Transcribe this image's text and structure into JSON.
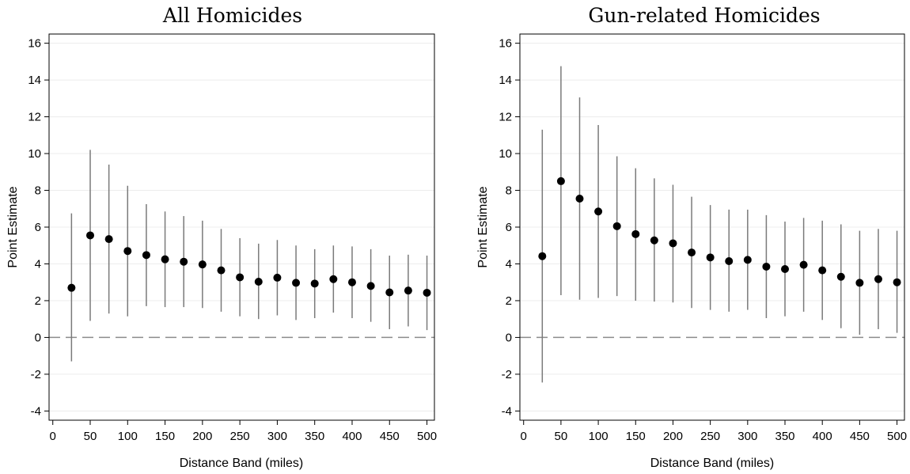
{
  "chart_data": [
    {
      "type": "scatter",
      "title": "All Homicides",
      "xlabel": "Distance Band (miles)",
      "ylabel": "Point Estimate",
      "xlim": [
        -5,
        510
      ],
      "ylim": [
        -4.5,
        16.5
      ],
      "xticks": [
        "0",
        "50",
        "100",
        "150",
        "200",
        "250",
        "300",
        "350",
        "400",
        "450",
        "500"
      ],
      "yticks": [
        "-4",
        "-2",
        "0",
        "2",
        "4",
        "6",
        "8",
        "10",
        "12",
        "14",
        "16"
      ],
      "reference_line": 0,
      "grid": true,
      "x": [
        25,
        50,
        75,
        100,
        125,
        150,
        175,
        200,
        225,
        250,
        275,
        300,
        325,
        350,
        375,
        400,
        425,
        450,
        475,
        500
      ],
      "estimate": [
        2.7,
        5.55,
        5.35,
        4.7,
        4.48,
        4.25,
        4.12,
        3.97,
        3.65,
        3.27,
        3.03,
        3.25,
        2.97,
        2.93,
        3.17,
        3.0,
        2.8,
        2.45,
        2.55,
        2.43
      ],
      "ci_low": [
        -1.3,
        0.9,
        1.3,
        1.15,
        1.7,
        1.65,
        1.65,
        1.6,
        1.4,
        1.15,
        1.0,
        1.2,
        0.95,
        1.05,
        1.35,
        1.05,
        0.85,
        0.45,
        0.6,
        0.4
      ],
      "ci_high": [
        6.75,
        10.2,
        9.4,
        8.25,
        7.25,
        6.85,
        6.6,
        6.35,
        5.9,
        5.4,
        5.1,
        5.3,
        5.0,
        4.8,
        5.0,
        4.95,
        4.8,
        4.45,
        4.5,
        4.45
      ]
    },
    {
      "type": "scatter",
      "title": "Gun-related Homicides",
      "xlabel": "Distance Band (miles)",
      "ylabel": "Point Estimate",
      "xlim": [
        -5,
        510
      ],
      "ylim": [
        -4.5,
        16.5
      ],
      "xticks": [
        "0",
        "50",
        "100",
        "150",
        "200",
        "250",
        "300",
        "350",
        "400",
        "450",
        "500"
      ],
      "yticks": [
        "-4",
        "-2",
        "0",
        "2",
        "4",
        "6",
        "8",
        "10",
        "12",
        "14",
        "16"
      ],
      "reference_line": 0,
      "grid": true,
      "x": [
        25,
        50,
        75,
        100,
        125,
        150,
        175,
        200,
        225,
        250,
        275,
        300,
        325,
        350,
        375,
        400,
        425,
        450,
        475,
        500
      ],
      "estimate": [
        4.42,
        8.5,
        7.55,
        6.85,
        6.05,
        5.62,
        5.28,
        5.12,
        4.62,
        4.35,
        4.15,
        4.22,
        3.85,
        3.72,
        3.95,
        3.65,
        3.3,
        2.97,
        3.17,
        3.0
      ],
      "ci_low": [
        -2.45,
        2.3,
        2.05,
        2.15,
        2.25,
        2.0,
        1.95,
        1.9,
        1.6,
        1.5,
        1.4,
        1.5,
        1.05,
        1.15,
        1.4,
        0.95,
        0.5,
        0.15,
        0.45,
        0.25
      ],
      "ci_high": [
        11.3,
        14.75,
        13.05,
        11.55,
        9.85,
        9.2,
        8.65,
        8.3,
        7.65,
        7.2,
        6.95,
        6.95,
        6.65,
        6.3,
        6.5,
        6.35,
        6.15,
        5.8,
        5.9,
        5.8
      ]
    }
  ]
}
